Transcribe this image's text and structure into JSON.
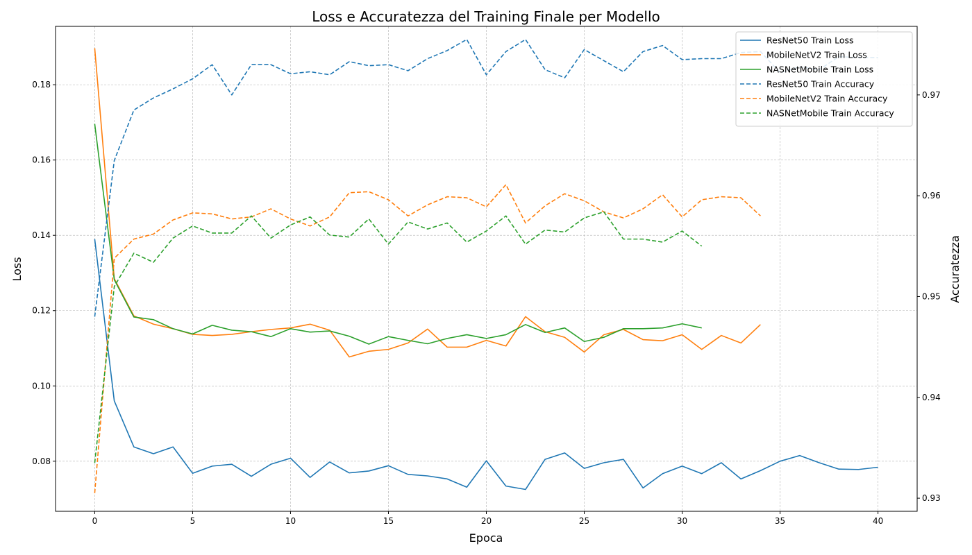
{
  "chart_data": {
    "type": "line",
    "title": "Loss e Accuratezza del Training Finale per Modello",
    "xlabel": "Epoca",
    "ylabel": "Loss",
    "y2label": "Accuratezza",
    "xlim": [
      -2,
      42
    ],
    "ylim": [
      0.0667,
      0.1955
    ],
    "y2lim": [
      0.9287,
      0.9768
    ],
    "x_ticks": [
      0,
      5,
      10,
      15,
      20,
      25,
      30,
      35,
      40
    ],
    "y_ticks": [
      0.08,
      0.1,
      0.12,
      0.14,
      0.16,
      0.18
    ],
    "y2_ticks": [
      0.93,
      0.94,
      0.95,
      0.96,
      0.97
    ],
    "grid": true,
    "legend_position": "top-right",
    "series": [
      {
        "name": "ResNet50 Train Loss",
        "axis": "left",
        "style": "solid",
        "color": "#1f77b4",
        "values": [
          0.139,
          0.096,
          0.0838,
          0.082,
          0.0838,
          0.0768,
          0.0787,
          0.0792,
          0.076,
          0.0792,
          0.0808,
          0.0757,
          0.0798,
          0.0769,
          0.0774,
          0.0788,
          0.0765,
          0.0761,
          0.0753,
          0.0731,
          0.0801,
          0.0734,
          0.0725,
          0.0805,
          0.0822,
          0.0781,
          0.0796,
          0.0805,
          0.0729,
          0.0767,
          0.0787,
          0.0767,
          0.0796,
          0.0753,
          0.0775,
          0.08,
          0.0815,
          0.0796,
          0.0779,
          0.0778,
          0.0784
        ]
      },
      {
        "name": "MobileNetV2 Train Loss",
        "axis": "left",
        "style": "solid",
        "color": "#ff7f0e",
        "values": [
          0.1897,
          0.1285,
          0.1186,
          0.1164,
          0.1152,
          0.1137,
          0.1134,
          0.1137,
          0.1144,
          0.115,
          0.1154,
          0.1164,
          0.1148,
          0.1077,
          0.1092,
          0.1097,
          0.1114,
          0.1151,
          0.1103,
          0.1103,
          0.1121,
          0.1106,
          0.1184,
          0.1144,
          0.1129,
          0.109,
          0.1136,
          0.115,
          0.1123,
          0.112,
          0.1136,
          0.1097,
          0.1134,
          0.1114,
          0.1163
        ]
      },
      {
        "name": "NASNetMobile Train Loss",
        "axis": "left",
        "style": "solid",
        "color": "#2ca02c",
        "values": [
          0.1696,
          0.1282,
          0.1183,
          0.1176,
          0.1152,
          0.1138,
          0.1161,
          0.1148,
          0.1144,
          0.1131,
          0.1152,
          0.1143,
          0.1146,
          0.1132,
          0.1111,
          0.1131,
          0.1121,
          0.1112,
          0.1126,
          0.1136,
          0.1126,
          0.1136,
          0.1163,
          0.1142,
          0.1154,
          0.1118,
          0.1129,
          0.1152,
          0.1152,
          0.1154,
          0.1165,
          0.1154
        ]
      },
      {
        "name": "ResNet50 Train Accuracy",
        "axis": "right",
        "style": "dashed",
        "color": "#1f77b4",
        "values": [
          0.948,
          0.9635,
          0.9685,
          0.9697,
          0.9706,
          0.9716,
          0.973,
          0.97,
          0.973,
          0.973,
          0.9721,
          0.9723,
          0.972,
          0.9733,
          0.9729,
          0.973,
          0.9724,
          0.9736,
          0.9744,
          0.9755,
          0.972,
          0.9743,
          0.9755,
          0.9725,
          0.9717,
          0.9745,
          0.9734,
          0.9723,
          0.9743,
          0.9749,
          0.9735,
          0.9736,
          0.9736,
          0.9742,
          0.9743,
          0.9722,
          0.9728,
          0.9725,
          0.9738,
          0.9737,
          0.9737
        ]
      },
      {
        "name": "MobileNetV2 Train Accuracy",
        "axis": "right",
        "style": "dashed",
        "color": "#ff7f0e",
        "values": [
          0.9305,
          0.9538,
          0.9557,
          0.9562,
          0.9576,
          0.9583,
          0.9582,
          0.9577,
          0.9579,
          0.9587,
          0.9577,
          0.957,
          0.9579,
          0.9603,
          0.9604,
          0.9596,
          0.958,
          0.9591,
          0.9599,
          0.9598,
          0.9589,
          0.9611,
          0.9573,
          0.959,
          0.9602,
          0.9595,
          0.9584,
          0.9578,
          0.9587,
          0.9601,
          0.9579,
          0.9596,
          0.9599,
          0.9598,
          0.958
        ]
      },
      {
        "name": "NASNetMobile Train Accuracy",
        "axis": "right",
        "style": "dashed",
        "color": "#2ca02c",
        "values": [
          0.9335,
          0.951,
          0.9543,
          0.9534,
          0.9558,
          0.957,
          0.9563,
          0.9563,
          0.958,
          0.9558,
          0.9571,
          0.9579,
          0.9561,
          0.9559,
          0.9577,
          0.9552,
          0.9574,
          0.9567,
          0.9573,
          0.9554,
          0.9565,
          0.958,
          0.9552,
          0.9566,
          0.9564,
          0.9578,
          0.9584,
          0.9557,
          0.9557,
          0.9554,
          0.9565,
          0.955
        ]
      }
    ]
  }
}
